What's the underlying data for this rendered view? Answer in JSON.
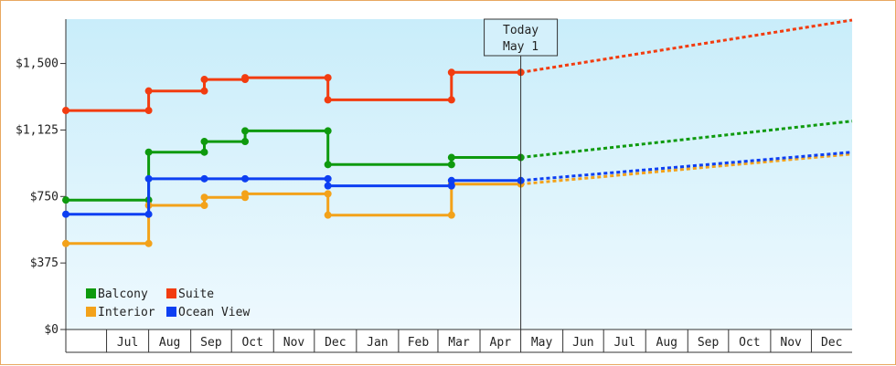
{
  "chart_data": {
    "type": "line",
    "title": "",
    "xlabel": "",
    "ylabel": "",
    "ylim": [
      0,
      1750
    ],
    "y_ticks": [
      {
        "value": 0,
        "label": "$0"
      },
      {
        "value": 375,
        "label": "$375"
      },
      {
        "value": 750,
        "label": "$750"
      },
      {
        "value": 1125,
        "label": "$1,125"
      },
      {
        "value": 1500,
        "label": "$1,500"
      }
    ],
    "x_axis_start": "2023-06-01",
    "x_axis_end": "2024-12-31",
    "month_ticks": [
      {
        "date": "2023-07-01",
        "label": "Jul"
      },
      {
        "date": "2023-08-01",
        "label": "Aug"
      },
      {
        "date": "2023-09-01",
        "label": "Sep"
      },
      {
        "date": "2023-10-01",
        "label": "Oct"
      },
      {
        "date": "2023-11-01",
        "label": "Nov"
      },
      {
        "date": "2023-12-01",
        "label": "Dec"
      },
      {
        "date": "2024-01-01",
        "label": "Jan"
      },
      {
        "date": "2024-02-01",
        "label": "Feb"
      },
      {
        "date": "2024-03-01",
        "label": "Mar"
      },
      {
        "date": "2024-04-01",
        "label": "Apr"
      },
      {
        "date": "2024-05-01",
        "label": "May"
      },
      {
        "date": "2024-06-01",
        "label": "Jun"
      },
      {
        "date": "2024-07-01",
        "label": "Jul"
      },
      {
        "date": "2024-08-01",
        "label": "Aug"
      },
      {
        "date": "2024-09-01",
        "label": "Sep"
      },
      {
        "date": "2024-10-01",
        "label": "Oct"
      },
      {
        "date": "2024-11-01",
        "label": "Nov"
      },
      {
        "date": "2024-12-01",
        "label": "Dec"
      }
    ],
    "today": {
      "date": "2024-05-01",
      "line1": "Today",
      "line2": "May 1"
    },
    "legend_position": "bottom-left",
    "series": [
      {
        "name": "Balcony",
        "color": "#0e9a0e",
        "history": [
          {
            "date": "2023-06-01",
            "value": 730
          },
          {
            "date": "2023-08-01",
            "value": 730
          },
          {
            "date": "2023-08-01",
            "value": 1000
          },
          {
            "date": "2023-09-11",
            "value": 1000
          },
          {
            "date": "2023-09-11",
            "value": 1060
          },
          {
            "date": "2023-10-11",
            "value": 1060
          },
          {
            "date": "2023-10-11",
            "value": 1120
          },
          {
            "date": "2023-12-11",
            "value": 1120
          },
          {
            "date": "2023-12-11",
            "value": 930
          },
          {
            "date": "2024-03-11",
            "value": 930
          },
          {
            "date": "2024-03-11",
            "value": 970
          },
          {
            "date": "2024-05-01",
            "value": 970
          }
        ],
        "forecast": [
          {
            "date": "2024-05-01",
            "value": 970
          },
          {
            "date": "2024-10-15",
            "value": 1110
          },
          {
            "date": "2024-12-31",
            "value": 1175
          }
        ]
      },
      {
        "name": "Interior",
        "color": "#f3a21a",
        "history": [
          {
            "date": "2023-06-01",
            "value": 485
          },
          {
            "date": "2023-08-01",
            "value": 485
          },
          {
            "date": "2023-08-01",
            "value": 700
          },
          {
            "date": "2023-09-11",
            "value": 700
          },
          {
            "date": "2023-09-11",
            "value": 745
          },
          {
            "date": "2023-10-11",
            "value": 745
          },
          {
            "date": "2023-10-11",
            "value": 765
          },
          {
            "date": "2023-12-11",
            "value": 765
          },
          {
            "date": "2023-12-11",
            "value": 645
          },
          {
            "date": "2024-03-11",
            "value": 645
          },
          {
            "date": "2024-03-11",
            "value": 820
          },
          {
            "date": "2024-05-01",
            "value": 820
          }
        ],
        "forecast": [
          {
            "date": "2024-05-01",
            "value": 820
          },
          {
            "date": "2024-12-31",
            "value": 990
          }
        ]
      },
      {
        "name": "Suite",
        "color": "#f23c10",
        "history": [
          {
            "date": "2023-06-01",
            "value": 1235
          },
          {
            "date": "2023-08-01",
            "value": 1235
          },
          {
            "date": "2023-08-01",
            "value": 1345
          },
          {
            "date": "2023-09-11",
            "value": 1345
          },
          {
            "date": "2023-09-11",
            "value": 1410
          },
          {
            "date": "2023-10-11",
            "value": 1410
          },
          {
            "date": "2023-10-11",
            "value": 1420
          },
          {
            "date": "2023-12-11",
            "value": 1420
          },
          {
            "date": "2023-12-11",
            "value": 1295
          },
          {
            "date": "2024-03-11",
            "value": 1295
          },
          {
            "date": "2024-03-11",
            "value": 1450
          },
          {
            "date": "2024-05-01",
            "value": 1450
          }
        ],
        "forecast": [
          {
            "date": "2024-05-01",
            "value": 1450
          },
          {
            "date": "2024-12-31",
            "value": 1745
          }
        ]
      },
      {
        "name": "Ocean View",
        "color": "#0d3ff2",
        "history": [
          {
            "date": "2023-06-01",
            "value": 650
          },
          {
            "date": "2023-08-01",
            "value": 650
          },
          {
            "date": "2023-08-01",
            "value": 850
          },
          {
            "date": "2023-09-11",
            "value": 850
          },
          {
            "date": "2023-10-11",
            "value": 850
          },
          {
            "date": "2023-12-11",
            "value": 850
          },
          {
            "date": "2023-12-11",
            "value": 810
          },
          {
            "date": "2024-03-11",
            "value": 810
          },
          {
            "date": "2024-03-11",
            "value": 840
          },
          {
            "date": "2024-05-01",
            "value": 840
          }
        ],
        "forecast": [
          {
            "date": "2024-05-01",
            "value": 840
          },
          {
            "date": "2024-12-31",
            "value": 1000
          }
        ]
      }
    ]
  }
}
